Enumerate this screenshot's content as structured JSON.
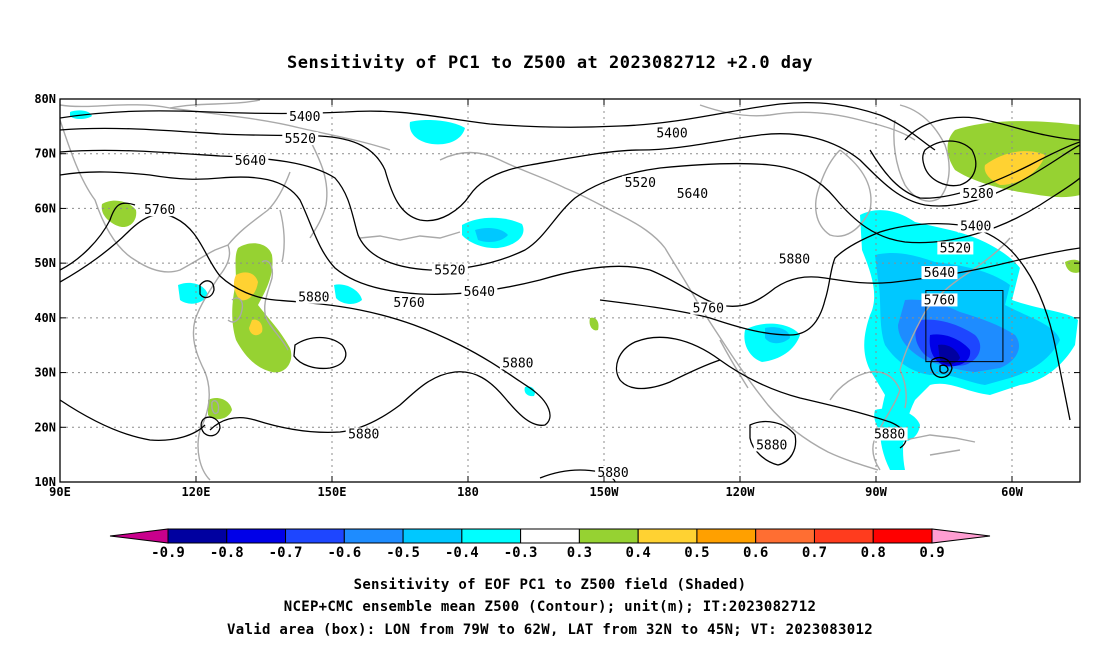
{
  "title": "Sensitivity of PC1 to Z500 at 2023082712 +2.0 day",
  "lon_axis": {
    "labels": [
      "90E",
      "120E",
      "150E",
      "180",
      "150W",
      "120W",
      "90W",
      "60W"
    ],
    "values": [
      90,
      120,
      150,
      180,
      210,
      240,
      270,
      300
    ],
    "range": [
      90,
      315
    ]
  },
  "lat_axis": {
    "labels": [
      "10N",
      "20N",
      "30N",
      "40N",
      "50N",
      "60N",
      "70N",
      "80N"
    ],
    "values": [
      10,
      20,
      30,
      40,
      50,
      60,
      70,
      80
    ],
    "range": [
      10,
      80
    ]
  },
  "contours": {
    "levels": [
      5280,
      5400,
      5520,
      5640,
      5760,
      5880
    ],
    "labels": [
      {
        "text": "5400",
        "lon": 144,
        "lat": 76.5
      },
      {
        "text": "5520",
        "lon": 143,
        "lat": 72.5
      },
      {
        "text": "5640",
        "lon": 132,
        "lat": 68.5
      },
      {
        "text": "5760",
        "lon": 112,
        "lat": 59.5
      },
      {
        "text": "5880",
        "lon": 146,
        "lat": 43.5
      },
      {
        "text": "5760",
        "lon": 167,
        "lat": 42.5
      },
      {
        "text": "5640",
        "lon": 182.5,
        "lat": 44.5
      },
      {
        "text": "5520",
        "lon": 176,
        "lat": 48.5
      },
      {
        "text": "5400",
        "lon": 225,
        "lat": 73.5
      },
      {
        "text": "5520",
        "lon": 218,
        "lat": 64.5
      },
      {
        "text": "5640",
        "lon": 229.5,
        "lat": 62.5
      },
      {
        "text": "5760",
        "lon": 233,
        "lat": 41.5
      },
      {
        "text": "5880",
        "lon": 252,
        "lat": 50.5
      },
      {
        "text": "5880",
        "lon": 191,
        "lat": 31.5
      },
      {
        "text": "5880",
        "lon": 157,
        "lat": 18.5
      },
      {
        "text": "5880",
        "lon": 212,
        "lat": 11.5
      },
      {
        "text": "5880",
        "lon": 247,
        "lat": 16.5
      },
      {
        "text": "5880",
        "lon": 273,
        "lat": 18.5
      },
      {
        "text": "5280",
        "lon": 292.5,
        "lat": 62.5
      },
      {
        "text": "5400",
        "lon": 292,
        "lat": 56.5
      },
      {
        "text": "5520",
        "lon": 287.5,
        "lat": 52.5
      },
      {
        "text": "5640",
        "lon": 284,
        "lat": 48
      },
      {
        "text": "5760",
        "lon": 284,
        "lat": 43
      }
    ]
  },
  "valid_box": {
    "lon_min": 281,
    "lon_max": 298,
    "lat_min": 32,
    "lat_max": 45
  },
  "colorbar": {
    "labels": [
      "-0.9",
      "-0.8",
      "-0.7",
      "-0.6",
      "-0.5",
      "-0.4",
      "-0.3",
      "0.3",
      "0.4",
      "0.5",
      "0.6",
      "0.7",
      "0.8",
      "0.9"
    ],
    "colors": [
      "#0000a0",
      "#0000e8",
      "#1e46ff",
      "#1e8cff",
      "#00c8ff",
      "#00ffff",
      "#ffffff",
      "#96d232",
      "#ffd232",
      "#ffa000",
      "#ff6e32",
      "#ff3c1e",
      "#ff0000"
    ],
    "low_color": "#c8008c",
    "high_color": "#ff9ed2"
  },
  "footer": {
    "line1": "Sensitivity of EOF PC1 to Z500 field (Shaded)",
    "line2": "NCEP+CMC ensemble mean Z500 (Contour); unit(m); IT:2023082712",
    "line3": "Valid area (box): LON from 79W to 62W, LAT from 32N to 45N; VT: 2023083012"
  }
}
